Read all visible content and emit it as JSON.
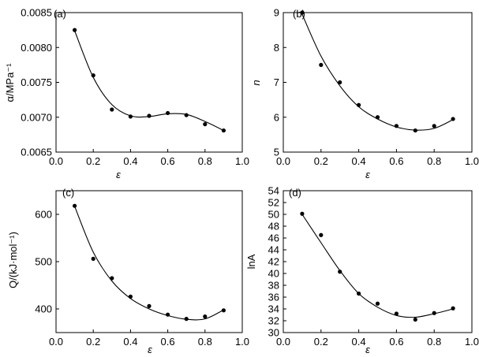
{
  "chart_data": [
    {
      "type": "scatter",
      "panel_tag": "(a)",
      "xlabel": "ε",
      "ylabel": "α/MPa⁻¹",
      "xlim": [
        0.0,
        1.0
      ],
      "ylim": [
        0.0065,
        0.0085
      ],
      "xticks": [
        "0.0",
        "0.2",
        "0.4",
        "0.6",
        "0.8",
        "1.0"
      ],
      "yticks": [
        "0.0065",
        "0.0070",
        "0.0075",
        "0.0080",
        "0.0085"
      ],
      "points": {
        "x": [
          0.1,
          0.2,
          0.3,
          0.4,
          0.5,
          0.6,
          0.7,
          0.8,
          0.9
        ],
        "y": [
          0.00825,
          0.0076,
          0.00711,
          0.00701,
          0.00702,
          0.00706,
          0.00703,
          0.0069,
          0.00681
        ]
      },
      "fit_curve": {
        "x": [
          0.1,
          0.2,
          0.3,
          0.4,
          0.5,
          0.6,
          0.7,
          0.8,
          0.9
        ],
        "y": [
          0.00824,
          0.00757,
          0.00718,
          0.00702,
          0.00701,
          0.00705,
          0.00704,
          0.00694,
          0.00681
        ]
      }
    },
    {
      "type": "scatter",
      "panel_tag": "(b)",
      "xlabel": "ε",
      "ylabel": "n",
      "xlim": [
        0.0,
        1.0
      ],
      "ylim": [
        5,
        9
      ],
      "xticks": [
        "0.0",
        "0.2",
        "0.4",
        "0.6",
        "0.8",
        "1.0"
      ],
      "yticks": [
        "5",
        "6",
        "7",
        "8",
        "9"
      ],
      "points": {
        "x": [
          0.1,
          0.2,
          0.3,
          0.4,
          0.5,
          0.6,
          0.7,
          0.8,
          0.9
        ],
        "y": [
          9.0,
          7.5,
          7.0,
          6.35,
          6.0,
          5.75,
          5.62,
          5.75,
          5.95
        ]
      },
      "fit_curve": {
        "x": [
          0.1,
          0.2,
          0.3,
          0.4,
          0.5,
          0.6,
          0.7,
          0.8,
          0.9
        ],
        "y": [
          8.95,
          7.75,
          6.9,
          6.3,
          5.95,
          5.72,
          5.63,
          5.68,
          5.93
        ]
      }
    },
    {
      "type": "scatter",
      "panel_tag": "(c)",
      "xlabel": "ε",
      "ylabel": "Q/(kJ·mol⁻¹)",
      "xlim": [
        0.0,
        1.0
      ],
      "ylim": [
        350,
        650
      ],
      "xticks": [
        "0.0",
        "0.2",
        "0.4",
        "0.6",
        "0.8",
        "1.0"
      ],
      "yticks": [
        "400",
        "500",
        "600"
      ],
      "points": {
        "x": [
          0.1,
          0.2,
          0.3,
          0.4,
          0.5,
          0.6,
          0.7,
          0.8,
          0.9
        ],
        "y": [
          618,
          506,
          465,
          426,
          406,
          388,
          379,
          384,
          397
        ]
      },
      "fit_curve": {
        "x": [
          0.1,
          0.2,
          0.3,
          0.4,
          0.5,
          0.6,
          0.7,
          0.8,
          0.9
        ],
        "y": [
          617,
          520,
          459,
          422,
          400,
          386,
          378,
          379,
          398
        ]
      }
    },
    {
      "type": "scatter",
      "panel_tag": "(d)",
      "xlabel": "ε",
      "ylabel": "lnA",
      "xlim": [
        0.0,
        1.0
      ],
      "ylim": [
        30,
        54
      ],
      "xticks": [
        "0.0",
        "0.2",
        "0.4",
        "0.6",
        "0.8",
        "1.0"
      ],
      "yticks": [
        "30",
        "32",
        "34",
        "36",
        "38",
        "40",
        "42",
        "44",
        "46",
        "48",
        "50",
        "52",
        "54"
      ],
      "points": {
        "x": [
          0.1,
          0.2,
          0.3,
          0.4,
          0.5,
          0.6,
          0.7,
          0.8,
          0.9
        ],
        "y": [
          50.1,
          46.5,
          40.3,
          36.6,
          34.9,
          33.2,
          32.2,
          33.3,
          34.1
        ]
      },
      "fit_curve": {
        "x": [
          0.1,
          0.2,
          0.3,
          0.4,
          0.5,
          0.6,
          0.7,
          0.8,
          0.9
        ],
        "y": [
          50.0,
          45.2,
          40.5,
          36.6,
          34.3,
          32.9,
          32.6,
          33.2,
          34.0
        ]
      }
    }
  ]
}
